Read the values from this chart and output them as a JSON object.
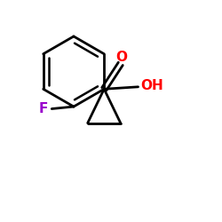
{
  "background": "#ffffff",
  "bond_color": "#000000",
  "bond_width": 2.0,
  "F_color": "#9900cc",
  "O_color": "#ff0000",
  "font_size_atom": 11,
  "figsize": [
    2.5,
    2.5
  ],
  "dpi": 100,
  "O_label": "O",
  "OH_label": "OH",
  "F_label": "F"
}
